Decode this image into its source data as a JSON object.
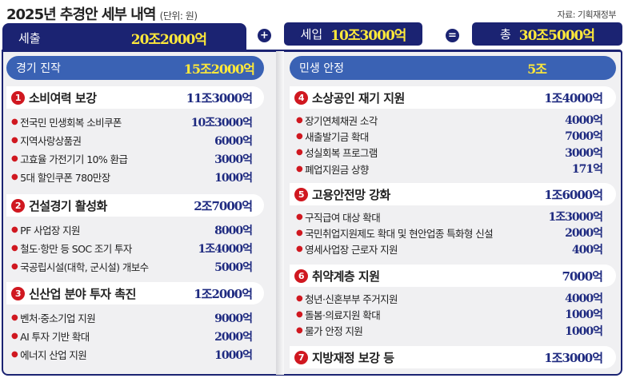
{
  "title": "2025년 추경안 세부 내역",
  "unit": "(단위: 원)",
  "source": "자료: 기획재정부",
  "summary": {
    "expenditure_label": "세출",
    "expenditure_value": "20조2000억",
    "plus": "+",
    "revenue_label": "세입",
    "revenue_value": "10조3000억",
    "equals": "=",
    "total_label": "총",
    "total_value": "30조5000억"
  },
  "left": {
    "label": "경기 진작",
    "value": "15조2000억",
    "groups": [
      {
        "num": "1",
        "title": "소비여력 보강",
        "value": "11조3000억",
        "items": [
          {
            "label": "전국민 민생회복 소비쿠폰",
            "value": "10조3000억"
          },
          {
            "label": "지역사랑상품권",
            "value": "6000억"
          },
          {
            "label": "고효율 가전기기 10% 환급",
            "value": "3000억"
          },
          {
            "label": "5대 할인쿠폰 780만장",
            "value": "1000억"
          }
        ]
      },
      {
        "num": "2",
        "title": "건설경기 활성화",
        "value": "2조7000억",
        "items": [
          {
            "label": "PF 사업장 지원",
            "value": "8000억"
          },
          {
            "label": "철도·항만 등 SOC 조기 투자",
            "value": "1조4000억"
          },
          {
            "label": "국공립시설(대학, 군시설) 개보수",
            "value": "5000억"
          }
        ]
      },
      {
        "num": "3",
        "title": "신산업 분야 투자 촉진",
        "value": "1조2000억",
        "items": [
          {
            "label": "벤처·중소기업 지원",
            "value": "9000억"
          },
          {
            "label": "AI 투자 기반 확대",
            "value": "2000억"
          },
          {
            "label": "에너지 산업 지원",
            "value": "1000억"
          }
        ]
      }
    ]
  },
  "right": {
    "label": "민생 안정",
    "value": "5조",
    "groups": [
      {
        "num": "4",
        "title": "소상공인 재기 지원",
        "value": "1조4000억",
        "items": [
          {
            "label": "장기연체채권 소각",
            "value": "4000억"
          },
          {
            "label": "새출발기금 확대",
            "value": "7000억"
          },
          {
            "label": "성실회복 프로그램",
            "value": "3000억"
          },
          {
            "label": "폐업지원금 상향",
            "value": "171억"
          }
        ]
      },
      {
        "num": "5",
        "title": "고용안전망 강화",
        "value": "1조6000억",
        "items": [
          {
            "label": "구직급여 대상 확대",
            "value": "1조3000억"
          },
          {
            "label": "국민취업지원제도 확대 및 현안업종 특화형 신설",
            "value": "2000억"
          },
          {
            "label": "영세사업장 근로자 지원",
            "value": "400억"
          }
        ]
      },
      {
        "num": "6",
        "title": "취약계층 지원",
        "value": "7000억",
        "items": [
          {
            "label": "청년·신혼부부 주거지원",
            "value": "4000억"
          },
          {
            "label": "돌봄·의료지원 확대",
            "value": "1000억"
          },
          {
            "label": "물가 안정 지원",
            "value": "1000억"
          }
        ]
      },
      {
        "num": "7",
        "title": "지방재정 보강 등",
        "value": "1조3000억",
        "items": []
      }
    ]
  },
  "colors": {
    "navy": "#1b2372",
    "pill": "#3a62b4",
    "yellow": "#ffe93a",
    "red": "#d01820",
    "value": "#1e2a80"
  }
}
